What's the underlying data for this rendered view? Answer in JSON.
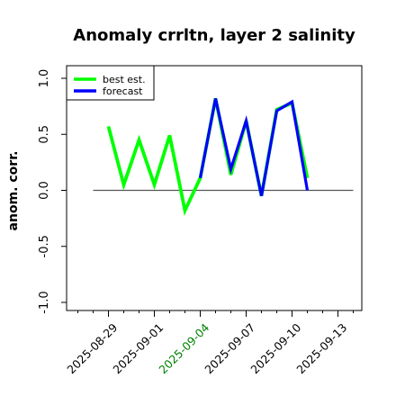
{
  "chart_data": {
    "type": "line",
    "title": "Anomaly crrltn, layer 2 salinity",
    "xlabel": "",
    "ylabel": "anom. corr.",
    "ylim": [
      -1.0,
      1.0
    ],
    "y_ticks": [
      -1.0,
      -0.5,
      0.0,
      0.5,
      1.0
    ],
    "y_tick_labels": [
      "-1.0",
      "-0.5",
      "0.0",
      "0.5",
      "1.0"
    ],
    "x_tick_labels": [
      "2025-08-29",
      "2025-09-01",
      "2025-09-04",
      "2025-09-07",
      "2025-09-10",
      "2025-09-13"
    ],
    "x_tick_colors": [
      "#000000",
      "#000000",
      "#008000",
      "#000000",
      "#000000",
      "#000000"
    ],
    "x_range": [
      "2025-08-27",
      "2025-09-14"
    ],
    "minor_tick_every_days": 1,
    "reference_line_y": 0.0,
    "reference_line_x_range": [
      "2025-08-28",
      "2025-09-14"
    ],
    "grid": false,
    "legend_position": "top-left",
    "series": [
      {
        "name": "best est.",
        "color": "#00ff00",
        "x": [
          "2025-08-29",
          "2025-08-30",
          "2025-08-31",
          "2025-09-01",
          "2025-09-02",
          "2025-09-03",
          "2025-09-04",
          "2025-09-05",
          "2025-09-06",
          "2025-09-07",
          "2025-09-08",
          "2025-09-09",
          "2025-09-10",
          "2025-09-11"
        ],
        "values": [
          0.57,
          0.05,
          0.45,
          0.05,
          0.49,
          -0.18,
          0.11,
          0.82,
          0.14,
          0.62,
          -0.05,
          0.72,
          0.78,
          0.11
        ]
      },
      {
        "name": "forecast",
        "color": "#0000ff",
        "x": [
          "2025-09-04",
          "2025-09-05",
          "2025-09-06",
          "2025-09-07",
          "2025-09-08",
          "2025-09-09",
          "2025-09-10",
          "2025-09-11"
        ],
        "values": [
          0.11,
          0.82,
          0.19,
          0.62,
          -0.05,
          0.71,
          0.79,
          0.0
        ]
      }
    ]
  }
}
